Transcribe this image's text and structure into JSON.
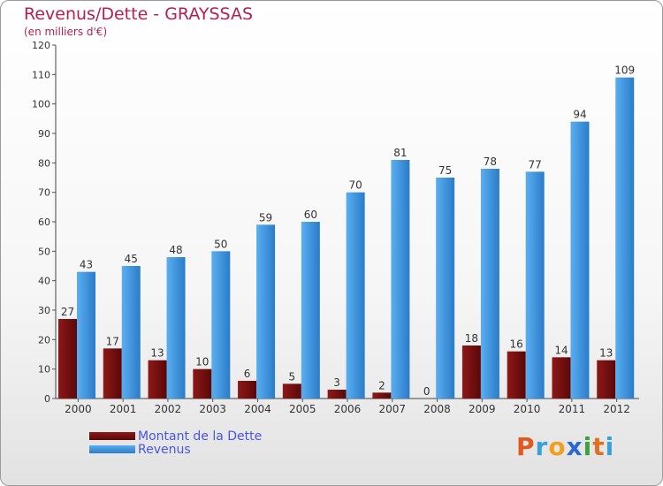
{
  "chart_data": {
    "type": "bar",
    "title": "Revenus/Dette - GRAYSSAS",
    "subtitle": "(en milliers d'€)",
    "xlabel": "",
    "ylabel": "",
    "ylim": [
      0,
      120
    ],
    "yticks": [
      0,
      10,
      20,
      30,
      40,
      50,
      60,
      70,
      80,
      90,
      100,
      110,
      120
    ],
    "grid": false,
    "legend_position": "bottom-left",
    "categories": [
      "2000",
      "2001",
      "2002",
      "2003",
      "2004",
      "2005",
      "2006",
      "2007",
      "2008",
      "2009",
      "2010",
      "2011",
      "2012"
    ],
    "series": [
      {
        "name": "Montant de la Dette",
        "color": "#7a1010",
        "values": [
          27,
          17,
          13,
          10,
          6,
          5,
          3,
          2,
          0,
          18,
          16,
          14,
          13
        ]
      },
      {
        "name": "Revenus",
        "color": "#3a8fd8",
        "values": [
          43,
          45,
          48,
          50,
          59,
          60,
          70,
          81,
          75,
          78,
          77,
          94,
          109
        ]
      }
    ]
  },
  "logo": {
    "letters": [
      "P",
      "r",
      "o",
      "x",
      "i",
      "t",
      "i"
    ],
    "colors": [
      "#e05a20",
      "#3aa0d8",
      "#f0a020",
      "#2a6ad0",
      "#40a040",
      "#e07020",
      "#3aa0d8"
    ]
  }
}
